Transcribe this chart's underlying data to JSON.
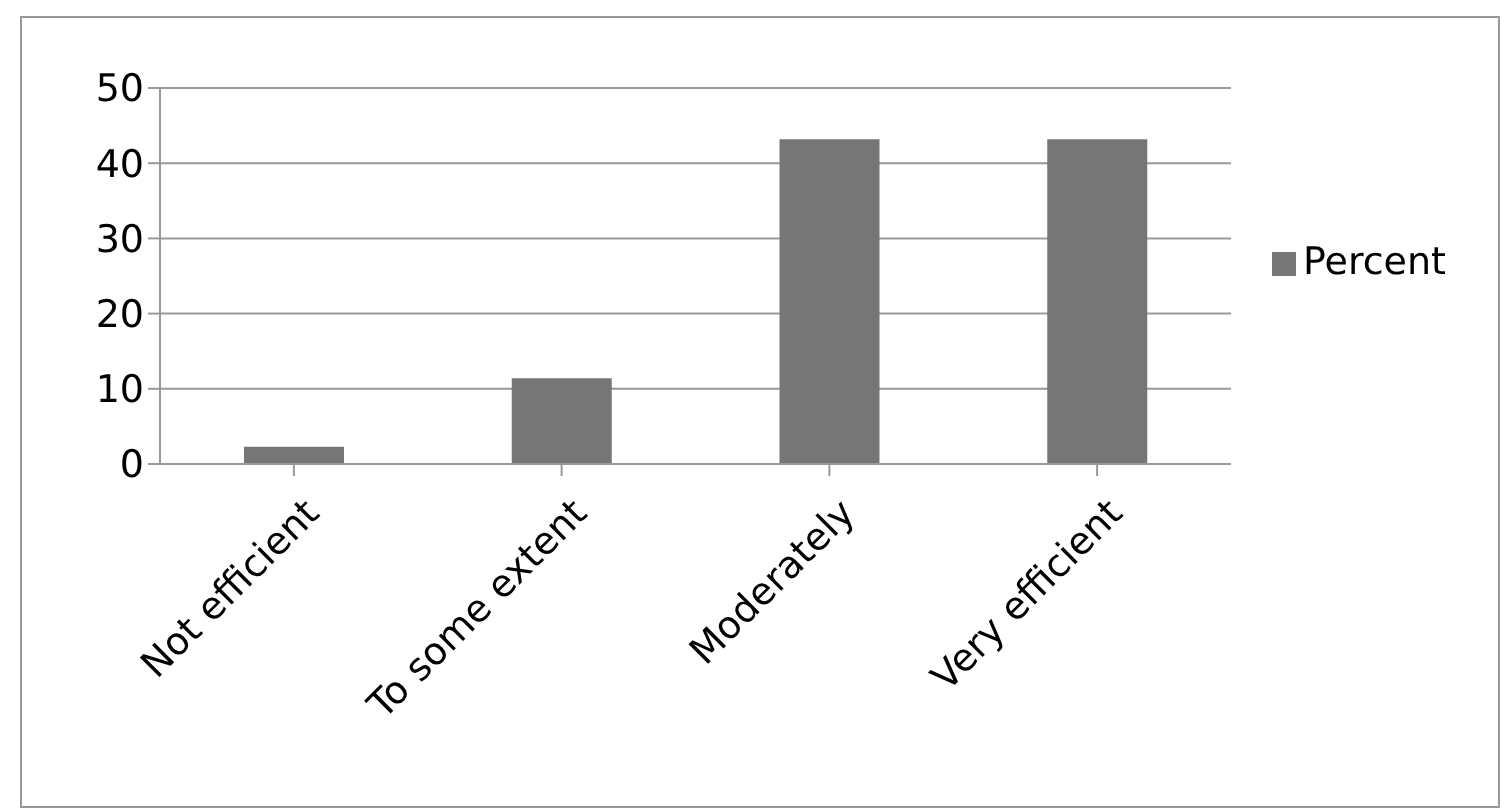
{
  "chart_data": {
    "type": "bar",
    "categories": [
      "Not efficient",
      "To some extent",
      "Moderately",
      "Very efficient"
    ],
    "series": [
      {
        "name": "Percent",
        "color": "#767676",
        "values": [
          2.3,
          11.4,
          43.2,
          43.2
        ]
      }
    ],
    "ylim": [
      0,
      50
    ],
    "yticks": [
      0,
      10,
      20,
      30,
      40,
      50
    ],
    "grid": "y",
    "legend": "right"
  }
}
